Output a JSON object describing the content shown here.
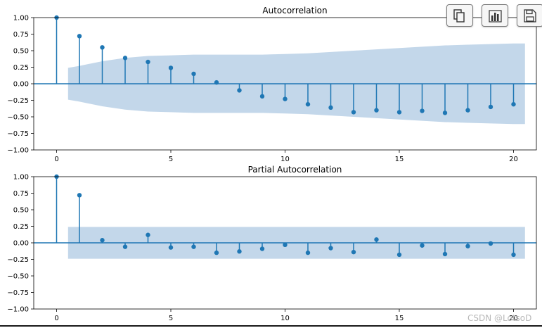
{
  "chart_data": [
    {
      "type": "stem",
      "title": "Autocorrelation",
      "xlabel": "",
      "ylabel": "",
      "xlim": [
        -1,
        21
      ],
      "ylim": [
        -1.0,
        1.0
      ],
      "xticks": [
        0,
        5,
        10,
        15,
        20
      ],
      "yticks": [
        1.0,
        0.75,
        0.5,
        0.25,
        0.0,
        -0.25,
        -0.5,
        -0.75,
        -1.0
      ],
      "ytick_labels": [
        "1.00",
        "0.75",
        "0.50",
        "0.25",
        "0.00",
        "−0.25",
        "−0.50",
        "−0.75",
        "−1.00"
      ],
      "lags": [
        0,
        1,
        2,
        3,
        4,
        5,
        6,
        7,
        8,
        9,
        10,
        11,
        12,
        13,
        14,
        15,
        16,
        17,
        18,
        19,
        20
      ],
      "values": [
        1.0,
        0.72,
        0.55,
        0.39,
        0.33,
        0.24,
        0.15,
        0.02,
        -0.1,
        -0.19,
        -0.23,
        -0.31,
        -0.36,
        -0.43,
        -0.4,
        -0.43,
        -0.41,
        -0.44,
        -0.4,
        -0.35,
        -0.31
      ],
      "confidence_band": [
        0.24,
        0.27,
        0.34,
        0.39,
        0.42,
        0.43,
        0.44,
        0.44,
        0.44,
        0.44,
        0.45,
        0.46,
        0.48,
        0.5,
        0.52,
        0.54,
        0.56,
        0.58,
        0.59,
        0.6,
        0.61
      ],
      "grid": false,
      "colors": {
        "stem": "#1f77b4",
        "band": "#c3d7ea",
        "zero_line": "#1f77b4"
      }
    },
    {
      "type": "stem",
      "title": "Partial Autocorrelation",
      "xlabel": "",
      "ylabel": "",
      "xlim": [
        -1,
        21
      ],
      "ylim": [
        -1.0,
        1.0
      ],
      "xticks": [
        0,
        5,
        10,
        15,
        20
      ],
      "yticks": [
        1.0,
        0.75,
        0.5,
        0.25,
        0.0,
        -0.25,
        -0.5,
        -0.75,
        -1.0
      ],
      "ytick_labels": [
        "1.00",
        "0.75",
        "0.50",
        "0.25",
        "0.00",
        "−0.25",
        "−0.50",
        "−0.75",
        "−1.00"
      ],
      "lags": [
        0,
        1,
        2,
        3,
        4,
        5,
        6,
        7,
        8,
        9,
        10,
        11,
        12,
        13,
        14,
        15,
        16,
        17,
        18,
        19,
        20
      ],
      "values": [
        1.0,
        0.72,
        0.04,
        -0.06,
        0.12,
        -0.07,
        -0.06,
        -0.15,
        -0.13,
        -0.09,
        -0.03,
        -0.15,
        -0.08,
        -0.14,
        0.05,
        -0.18,
        -0.04,
        -0.17,
        -0.05,
        -0.01,
        -0.18
      ],
      "confidence_band": [
        0.24,
        0.24,
        0.24,
        0.24,
        0.24,
        0.24,
        0.24,
        0.24,
        0.24,
        0.24,
        0.24,
        0.24,
        0.24,
        0.24,
        0.24,
        0.24,
        0.24,
        0.24,
        0.24,
        0.24,
        0.24
      ],
      "grid": false,
      "colors": {
        "stem": "#1f77b4",
        "band": "#c3d7ea",
        "zero_line": "#1f77b4"
      }
    }
  ],
  "toolbar": {
    "buttons": [
      {
        "icon": "copy-icon"
      },
      {
        "icon": "bar-chart-icon"
      },
      {
        "icon": "save-icon"
      }
    ]
  },
  "watermark": "CSDN @LotsoD"
}
